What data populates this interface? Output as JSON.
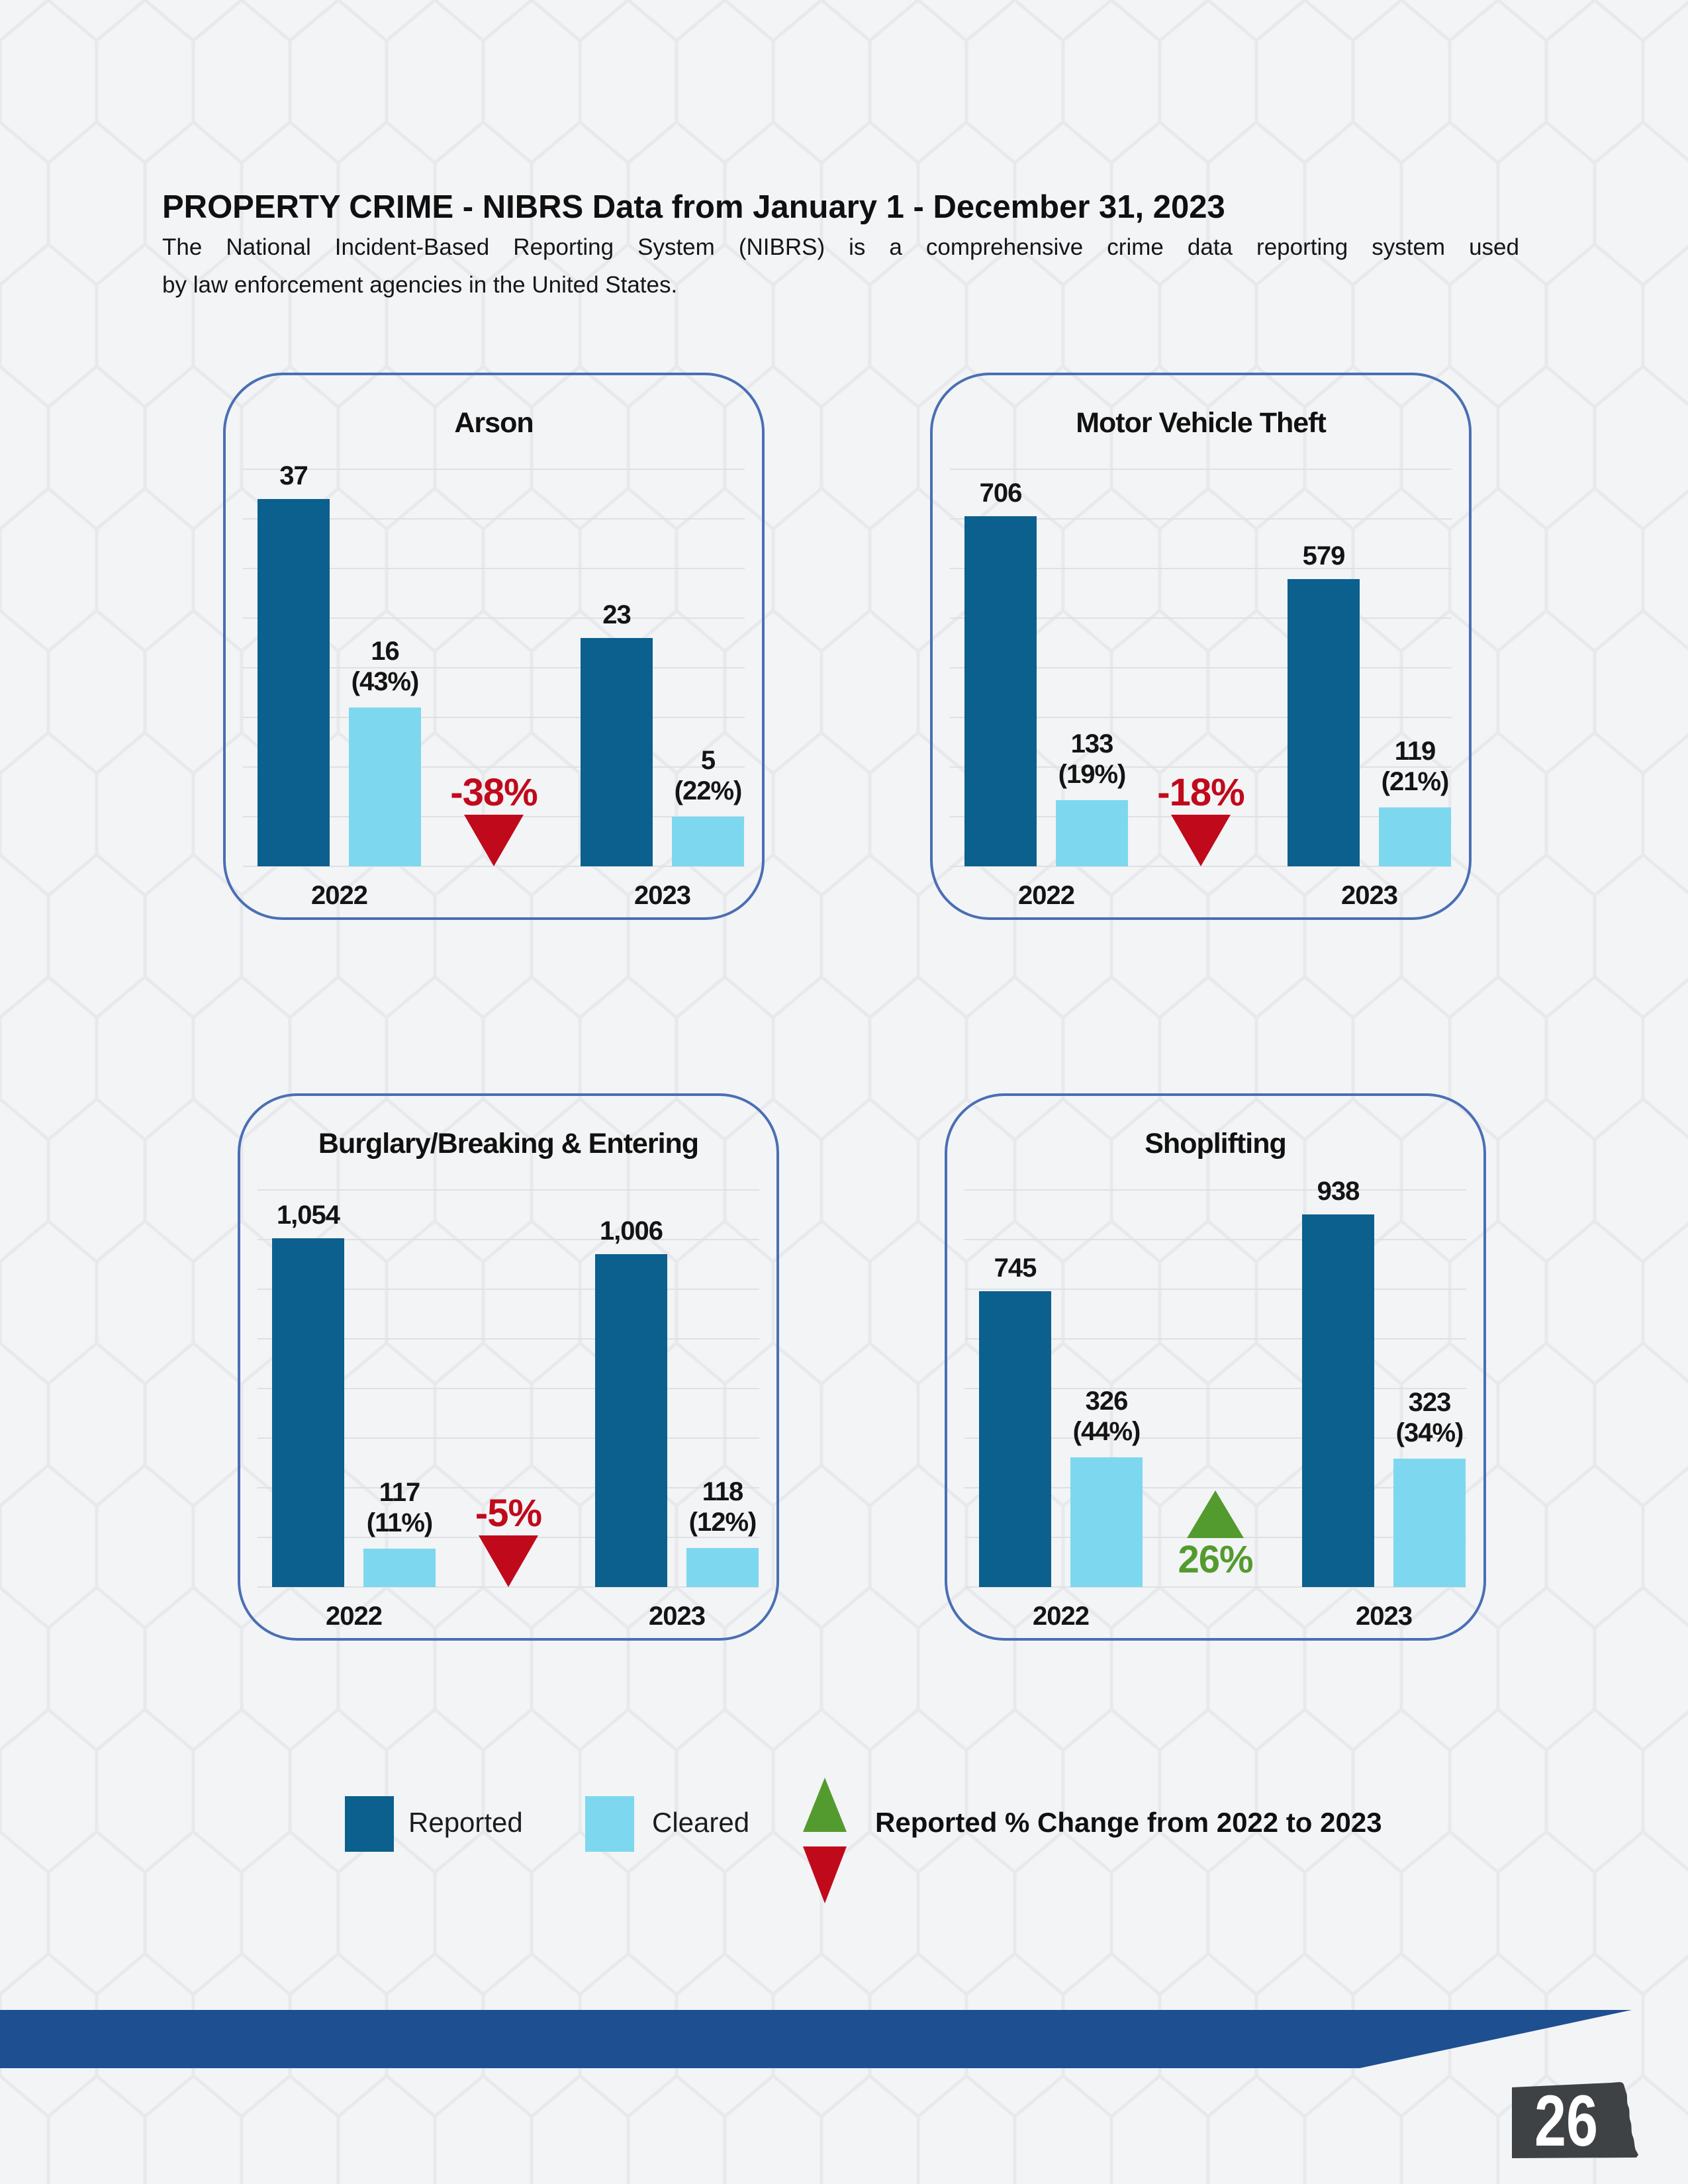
{
  "header": {
    "title": "PROPERTY CRIME - NIBRS Data from January 1 - December 31, 2023",
    "subtitle_line1": "The National Incident-Based Reporting System (NIBRS) is a comprehensive crime data reporting system used",
    "subtitle_line2": "by law enforcement agencies in the United States."
  },
  "chart_data": [
    {
      "type": "bar",
      "title": "Arson",
      "categories": [
        "2022",
        "2023"
      ],
      "series": [
        {
          "name": "Reported",
          "values": [
            37,
            23
          ],
          "labels": [
            "37",
            "23"
          ]
        },
        {
          "name": "Cleared",
          "values": [
            16,
            5
          ],
          "labels": [
            "16",
            "5"
          ],
          "pct_labels": [
            "(43%)",
            "(22%)"
          ]
        }
      ],
      "change": {
        "label": "-38%",
        "direction": "down"
      },
      "ylim": [
        0,
        40
      ],
      "gridlines": 8,
      "legend_position": "none"
    },
    {
      "type": "bar",
      "title": "Motor Vehicle Theft",
      "categories": [
        "2022",
        "2023"
      ],
      "series": [
        {
          "name": "Reported",
          "values": [
            706,
            579
          ],
          "labels": [
            "706",
            "579"
          ]
        },
        {
          "name": "Cleared",
          "values": [
            133,
            119
          ],
          "labels": [
            "133",
            "119"
          ],
          "pct_labels": [
            "(19%)",
            "(21%)"
          ]
        }
      ],
      "change": {
        "label": "-18%",
        "direction": "down"
      },
      "ylim": [
        0,
        800
      ],
      "gridlines": 8,
      "legend_position": "none"
    },
    {
      "type": "bar",
      "title": "Burglary/Breaking & Entering",
      "categories": [
        "2022",
        "2023"
      ],
      "series": [
        {
          "name": "Reported",
          "values": [
            1054,
            1006
          ],
          "labels": [
            "1,054",
            "1,006"
          ]
        },
        {
          "name": "Cleared",
          "values": [
            117,
            118
          ],
          "labels": [
            "117",
            "118"
          ],
          "pct_labels": [
            "(11%)",
            "(12%)"
          ]
        }
      ],
      "change": {
        "label": "-5%",
        "direction": "down"
      },
      "ylim": [
        0,
        1200
      ],
      "gridlines": 8,
      "legend_position": "none"
    },
    {
      "type": "bar",
      "title": "Shoplifting",
      "categories": [
        "2022",
        "2023"
      ],
      "series": [
        {
          "name": "Reported",
          "values": [
            745,
            938
          ],
          "labels": [
            "745",
            "938"
          ]
        },
        {
          "name": "Cleared",
          "values": [
            326,
            323
          ],
          "labels": [
            "326",
            "323"
          ],
          "pct_labels": [
            "(44%)",
            "(34%)"
          ]
        }
      ],
      "change": {
        "label": "26%",
        "direction": "up"
      },
      "ylim": [
        0,
        1000
      ],
      "gridlines": 8,
      "legend_position": "none"
    }
  ],
  "legend": {
    "reported_label": "Reported",
    "cleared_label": "Cleared",
    "change_label": "Reported % Change from 2022 to 2023"
  },
  "footer": {
    "page_number": "26"
  },
  "colors": {
    "reported": "#0b608d",
    "cleared": "#7dd8ef",
    "increase": "#539b2e",
    "decrease": "#c00a1b",
    "band": "#1d4f91",
    "card_border": "#4a6fb4",
    "badge": "#3f4245"
  }
}
